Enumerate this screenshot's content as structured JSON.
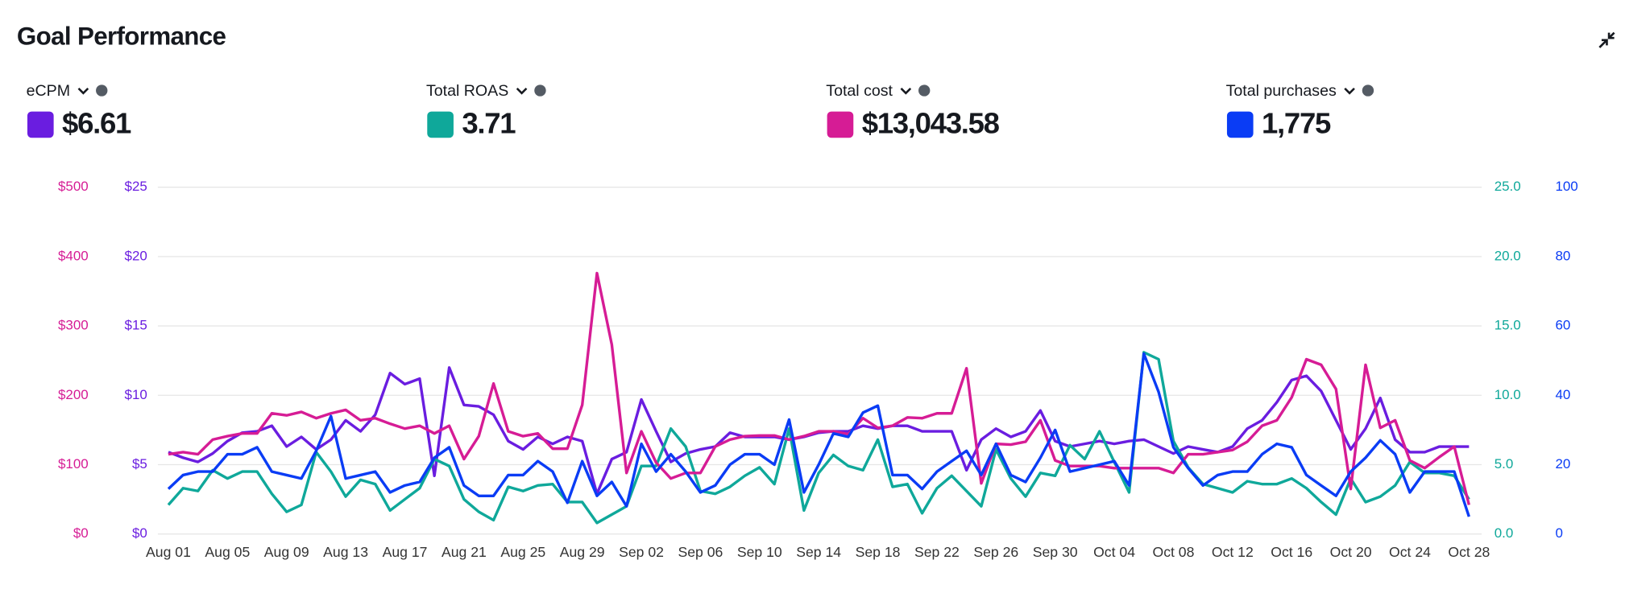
{
  "header": {
    "title": "Goal Performance"
  },
  "totals": [
    "$6.61",
    "3.71",
    "$13,043.58",
    "1,775"
  ],
  "chart_data": {
    "type": "line",
    "grid": true,
    "categories": [
      "Aug 01",
      null,
      null,
      null,
      "Aug 05",
      null,
      null,
      null,
      "Aug 09",
      null,
      null,
      null,
      "Aug 13",
      null,
      null,
      null,
      "Aug 17",
      null,
      null,
      null,
      "Aug 21",
      null,
      null,
      null,
      "Aug 25",
      null,
      null,
      null,
      "Aug 29",
      null,
      null,
      null,
      "Sep 02",
      null,
      null,
      null,
      "Sep 06",
      null,
      null,
      null,
      "Sep 10",
      null,
      null,
      null,
      "Sep 14",
      null,
      null,
      null,
      "Sep 18",
      null,
      null,
      null,
      "Sep 22",
      null,
      null,
      null,
      "Sep 26",
      null,
      null,
      null,
      "Sep 30",
      null,
      null,
      null,
      "Oct 04",
      null,
      null,
      null,
      "Oct 08",
      null,
      null,
      null,
      "Oct 12",
      null,
      null,
      null,
      "Oct 16",
      null,
      null,
      null,
      "Oct 20",
      null,
      null,
      null,
      "Oct 24",
      null,
      null,
      null,
      "Oct 28"
    ],
    "series": [
      {
        "name": "eCPM",
        "color": "#6a1de0",
        "side": "left",
        "ylim": [
          0,
          25
        ],
        "yticks": [
          {
            "value": 0,
            "label": "$0"
          },
          {
            "value": 5,
            "label": "$5"
          },
          {
            "value": 10,
            "label": "$10"
          },
          {
            "value": 15,
            "label": "$15"
          },
          {
            "value": 20,
            "label": "$20"
          },
          {
            "value": 25,
            "label": "$25"
          }
        ],
        "values": [
          5.9,
          5.5,
          5.2,
          5.8,
          6.7,
          7.3,
          7.4,
          7.8,
          6.3,
          7.0,
          6.1,
          6.8,
          8.2,
          7.4,
          8.6,
          11.6,
          10.8,
          11.2,
          4.2,
          12.0,
          9.3,
          9.2,
          8.6,
          6.7,
          6.1,
          7.0,
          6.5,
          7.0,
          6.7,
          2.9,
          5.4,
          5.9,
          9.7,
          7.4,
          5.2,
          5.8,
          6.1,
          6.3,
          7.3,
          7.0,
          7.0,
          7.0,
          6.8,
          7.0,
          7.3,
          7.4,
          7.4,
          7.8,
          7.6,
          7.8,
          7.8,
          7.4,
          7.4,
          7.4,
          4.6,
          6.8,
          7.6,
          7.0,
          7.4,
          8.9,
          6.7,
          6.3,
          6.5,
          6.7,
          6.5,
          6.7,
          6.8,
          6.3,
          5.8,
          6.3,
          6.1,
          5.9,
          6.3,
          7.6,
          8.2,
          9.5,
          11.1,
          11.4,
          10.3,
          8.2,
          6.1,
          7.6,
          9.8,
          6.8,
          5.9,
          5.9,
          6.3,
          6.3,
          6.3
        ]
      },
      {
        "name": "Total ROAS",
        "color": "#0fa89a",
        "side": "right",
        "ylim": [
          0,
          25
        ],
        "yticks": [
          {
            "value": 0,
            "label": "0.0"
          },
          {
            "value": 5,
            "label": "5.0"
          },
          {
            "value": 10,
            "label": "10.0"
          },
          {
            "value": 15,
            "label": "15.0"
          },
          {
            "value": 20,
            "label": "20.0"
          },
          {
            "value": 25,
            "label": "25.0"
          }
        ],
        "values": [
          2.1,
          3.3,
          3.1,
          4.6,
          4.0,
          4.5,
          4.5,
          2.9,
          1.6,
          2.1,
          5.9,
          4.5,
          2.7,
          3.9,
          3.6,
          1.7,
          2.5,
          3.3,
          5.4,
          4.9,
          2.5,
          1.6,
          1.0,
          3.4,
          3.1,
          3.5,
          3.6,
          2.3,
          2.3,
          0.8,
          1.4,
          2.0,
          4.9,
          4.9,
          7.6,
          6.3,
          3.1,
          2.9,
          3.4,
          4.2,
          4.8,
          3.6,
          7.6,
          1.7,
          4.4,
          5.7,
          4.9,
          4.6,
          6.8,
          3.4,
          3.6,
          1.5,
          3.3,
          4.2,
          3.1,
          2.0,
          6.1,
          4.0,
          2.7,
          4.4,
          4.2,
          6.4,
          5.4,
          7.4,
          5.2,
          3.0,
          13.1,
          12.6,
          6.7,
          4.8,
          3.6,
          3.3,
          3.0,
          3.8,
          3.6,
          3.6,
          4.0,
          3.3,
          2.3,
          1.4,
          4.0,
          2.3,
          2.7,
          3.5,
          5.2,
          4.4,
          4.4,
          4.2,
          2.5
        ]
      },
      {
        "name": "Total cost",
        "color": "#d61c95",
        "side": "left",
        "ylim": [
          0,
          500
        ],
        "yticks": [
          {
            "value": 0,
            "label": "$0"
          },
          {
            "value": 100,
            "label": "$100"
          },
          {
            "value": 200,
            "label": "$200"
          },
          {
            "value": 300,
            "label": "$300"
          },
          {
            "value": 400,
            "label": "$400"
          },
          {
            "value": 500,
            "label": "$500"
          }
        ],
        "values": [
          115,
          118,
          115,
          136,
          141,
          145,
          145,
          174,
          171,
          176,
          167,
          174,
          179,
          164,
          167,
          159,
          152,
          156,
          145,
          156,
          108,
          141,
          217,
          148,
          141,
          145,
          123,
          123,
          186,
          376,
          273,
          88,
          148,
          103,
          80,
          88,
          88,
          126,
          136,
          141,
          142,
          142,
          136,
          141,
          148,
          148,
          144,
          167,
          153,
          156,
          168,
          167,
          174,
          174,
          239,
          73,
          130,
          129,
          133,
          164,
          106,
          98,
          98,
          98,
          95,
          95,
          95,
          95,
          88,
          115,
          115,
          118,
          121,
          133,
          156,
          164,
          197,
          252,
          244,
          209,
          65,
          244,
          153,
          164,
          106,
          95,
          111,
          126,
          42
        ]
      },
      {
        "name": "Total purchases",
        "color": "#0a3cf5",
        "side": "right",
        "ylim": [
          0,
          100
        ],
        "yticks": [
          0,
          20,
          40,
          60,
          80,
          100
        ],
        "values": [
          13,
          17,
          18,
          18,
          23,
          23,
          25,
          18,
          17,
          16,
          24,
          34,
          16,
          17,
          18,
          12,
          14,
          15,
          22,
          25,
          14,
          11,
          11,
          17,
          17,
          21,
          18,
          9,
          21,
          11,
          15,
          8,
          26,
          18,
          23,
          18,
          12,
          14,
          20,
          23,
          23,
          20,
          33,
          12,
          20,
          29,
          28,
          35,
          37,
          17,
          17,
          13,
          18,
          21,
          24,
          17,
          26,
          17,
          15,
          22,
          30,
          18,
          19,
          20,
          21,
          14,
          52,
          41,
          25,
          19,
          14,
          17,
          18,
          18,
          23,
          26,
          25,
          17,
          14,
          11,
          18,
          22,
          27,
          23,
          12,
          18,
          18,
          18,
          5
        ]
      }
    ]
  }
}
